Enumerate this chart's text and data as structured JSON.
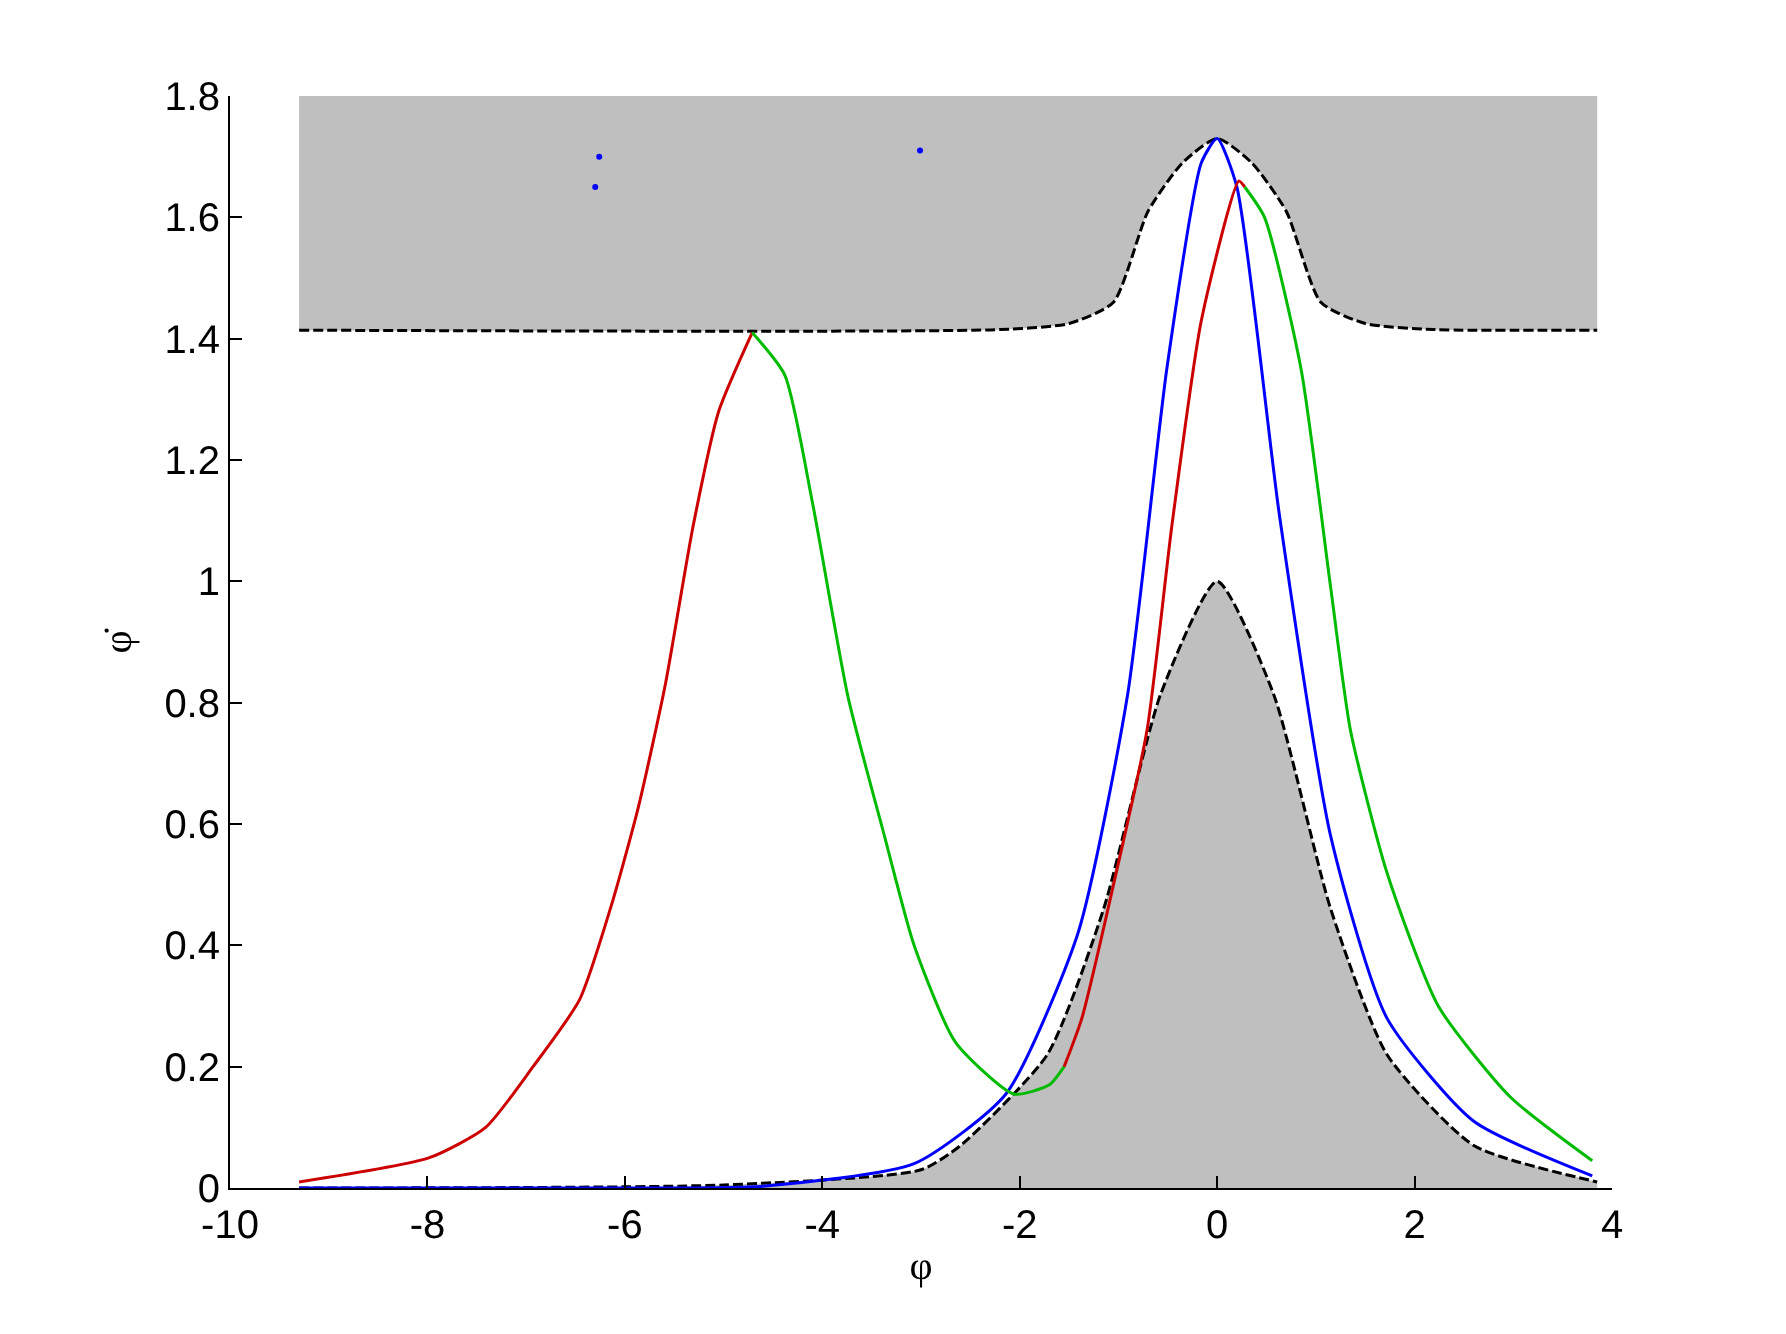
{
  "chart_data": {
    "type": "line",
    "xlabel": "φ",
    "ylabel": "φ̇",
    "xlim": [
      -10,
      4
    ],
    "ylim": [
      0,
      1.8
    ],
    "xticks": [
      -10,
      -8,
      -6,
      -4,
      -2,
      0,
      2,
      4
    ],
    "yticks": [
      0,
      0.2,
      0.4,
      0.6,
      0.8,
      1,
      1.2,
      1.4,
      1.6,
      1.8
    ],
    "series": [
      {
        "color": "#000000",
        "line_style": "dashed",
        "x": [
          -9.3,
          -5,
          -3,
          -2.6,
          -1.72,
          -1.15,
          -0.57,
          0,
          0.57,
          1.15,
          1.72,
          2.6,
          3.85
        ],
        "values": [
          0,
          0.005,
          0.03,
          0.07,
          0.22,
          0.46,
          0.815,
          1.0,
          0.815,
          0.46,
          0.22,
          0.07,
          0.01
        ],
        "lower": [
          0,
          0,
          0,
          0,
          0,
          0,
          0,
          0,
          0,
          0,
          0,
          0,
          0
        ],
        "upper": [
          0,
          0.005,
          0.03,
          0.07,
          0.22,
          0.46,
          0.815,
          1.0,
          0.815,
          0.46,
          0.22,
          0.07,
          0.01
        ]
      },
      {
        "color": "#000000",
        "line_style": "dashed",
        "x": [
          -9.3,
          -2.2,
          -1.5,
          -1.05,
          -0.7,
          -0.35,
          0,
          0.35,
          0.7,
          1.05,
          1.5,
          2.2,
          3.85
        ],
        "values": [
          1.414,
          1.415,
          1.425,
          1.46,
          1.61,
          1.69,
          1.73,
          1.69,
          1.61,
          1.46,
          1.425,
          1.415,
          1.414
        ],
        "lower": [
          1.414,
          1.415,
          1.425,
          1.46,
          1.61,
          1.69,
          1.73,
          1.69,
          1.61,
          1.46,
          1.425,
          1.415,
          1.414
        ],
        "upper": [
          1.8,
          1.8,
          1.8,
          1.8,
          1.8,
          1.8,
          1.8,
          1.8,
          1.8,
          1.8,
          1.8,
          1.8,
          1.8
        ]
      },
      {
        "color": "#0000ff",
        "x": [
          -9.3,
          -6,
          -4.6,
          -3.07,
          -2.14,
          -1.41,
          -0.91,
          -0.51,
          -0.16,
          0,
          0.2,
          0.63,
          1.15,
          1.72,
          2.6,
          3.8
        ],
        "values": [
          0,
          0,
          0.003,
          0.04,
          0.155,
          0.42,
          0.81,
          1.35,
          1.69,
          1.73,
          1.65,
          1.11,
          0.58,
          0.28,
          0.11,
          0.02
        ]
      },
      {
        "color": "#cc0000",
        "x": [
          -9.3,
          -7.98,
          -7.41,
          -6.93,
          -6.46,
          -6.12,
          -5.86,
          -5.59,
          -5.31,
          -5.05,
          -4.71
        ],
        "values": [
          0.01,
          0.05,
          0.1,
          0.2,
          0.31,
          0.475,
          0.63,
          0.83,
          1.09,
          1.28,
          1.41
        ]
      },
      {
        "color": "#00bb00",
        "x": [
          -4.71,
          -4.38,
          -4.1,
          -3.74,
          -3.37,
          -3.07,
          -2.65,
          -2.06,
          -1.7,
          -1.55
        ],
        "values": [
          1.41,
          1.34,
          1.13,
          0.81,
          0.58,
          0.4,
          0.24,
          0.155,
          0.17,
          0.2
        ]
      },
      {
        "color": "#cc0000",
        "x": [
          -1.55,
          -1.37,
          -1.05,
          -0.71,
          -0.46,
          -0.16,
          0.22,
          0.28
        ],
        "values": [
          0.2,
          0.28,
          0.5,
          0.755,
          1.09,
          1.43,
          1.66,
          1.65
        ]
      },
      {
        "color": "#00bb00",
        "x": [
          0.28,
          0.48,
          0.85,
          1.15,
          1.35,
          1.72,
          2.24,
          2.97,
          3.8
        ],
        "values": [
          1.65,
          1.6,
          1.35,
          0.99,
          0.755,
          0.52,
          0.3,
          0.15,
          0.045
        ]
      },
      {
        "type": "scatter",
        "color": "#0000ff",
        "x": [
          -6.26,
          -6.3,
          -3.01
        ],
        "values": [
          1.7,
          1.65,
          1.71
        ]
      }
    ]
  }
}
